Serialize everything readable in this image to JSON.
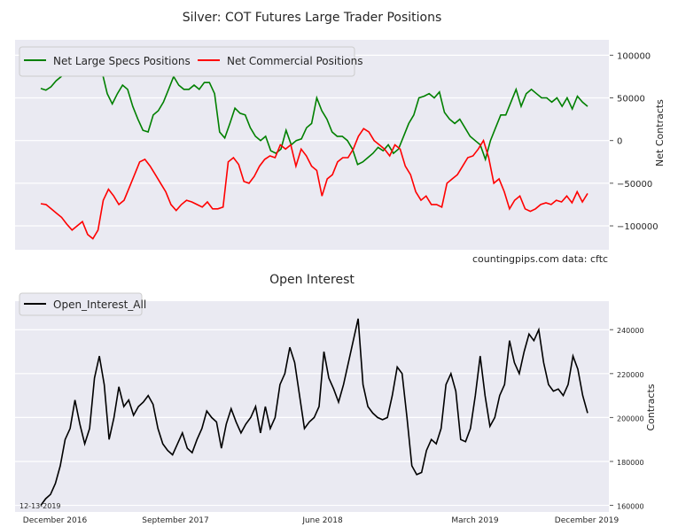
{
  "chart_data": [
    {
      "type": "line",
      "title": "Silver: COT Futures Large Trader Positions",
      "ylabel": "Net Contracts",
      "ylim": [
        -128000,
        118000
      ],
      "yticks": [
        100000,
        50000,
        0,
        -50000,
        -100000
      ],
      "ytick_labels": [
        "100000",
        "50000",
        "0",
        "−50000",
        "−100000"
      ],
      "legend_position": "top-left",
      "grid": true,
      "annotations": {
        "source": "countingpips.com",
        "data": "data: cftc"
      },
      "series": [
        {
          "name": "Net Large Specs Positions",
          "color": "#008000",
          "values": [
            61,
            59,
            63,
            70,
            75,
            83,
            90,
            96,
            85,
            80,
            95,
            105,
            80,
            55,
            43,
            55,
            65,
            60,
            40,
            25,
            12,
            10,
            30,
            35,
            45,
            60,
            75,
            65,
            60,
            60,
            65,
            60,
            68,
            68,
            55,
            10,
            3,
            20,
            38,
            32,
            30,
            15,
            5,
            0,
            5,
            -12,
            -15,
            -10,
            12,
            -5,
            0,
            2,
            15,
            20,
            50,
            35,
            25,
            10,
            5,
            5,
            0,
            -10,
            -28,
            -25,
            -20,
            -15,
            -8,
            -12,
            -5,
            -15,
            -10,
            5,
            20,
            30,
            50,
            52,
            55,
            50,
            57,
            33,
            25,
            20,
            25,
            15,
            5,
            0,
            -5,
            -22,
            0,
            15,
            30,
            30,
            45,
            60,
            40,
            55,
            60,
            55,
            50,
            50,
            45,
            50,
            40,
            50,
            37,
            52,
            45,
            40
          ]
        },
        {
          "name": "Net Commercial Positions",
          "color": "#ff0000",
          "values": [
            -74,
            -75,
            -80,
            -85,
            -90,
            -98,
            -105,
            -100,
            -95,
            -110,
            -115,
            -105,
            -70,
            -57,
            -65,
            -75,
            -70,
            -55,
            -40,
            -25,
            -22,
            -30,
            -40,
            -50,
            -60,
            -75,
            -82,
            -75,
            -70,
            -72,
            -75,
            -78,
            -72,
            -80,
            -80,
            -78,
            -25,
            -20,
            -28,
            -48,
            -50,
            -42,
            -30,
            -22,
            -18,
            -20,
            -5,
            -10,
            -5,
            -30,
            -10,
            -18,
            -30,
            -35,
            -65,
            -45,
            -40,
            -25,
            -20,
            -20,
            -10,
            5,
            14,
            10,
            0,
            -5,
            -10,
            -18,
            -5,
            -10,
            -30,
            -40,
            -60,
            -70,
            -65,
            -75,
            -75,
            -78,
            -50,
            -45,
            -40,
            -30,
            -20,
            -18,
            -10,
            0,
            -20,
            -50,
            -45,
            -60,
            -80,
            -70,
            -65,
            -80,
            -83,
            -80,
            -75,
            -73,
            -75,
            -70,
            -72,
            -65,
            -73,
            -60,
            -72,
            -62
          ]
        }
      ],
      "value_unit_multiplier": 1000
    },
    {
      "type": "line",
      "title": "Open Interest",
      "ylabel": "Contracts",
      "ylim": [
        157000,
        253000
      ],
      "yticks": [
        240000,
        220000,
        200000,
        180000,
        160000
      ],
      "ytick_labels": [
        "240000",
        "220000",
        "200000",
        "180000",
        "160000"
      ],
      "xtick_labels": [
        "December 2016",
        "September 2017",
        "June 2018",
        "March 2019",
        "December 2019"
      ],
      "legend_position": "top-left",
      "grid": true,
      "annotations": {
        "date": "12-13-2019"
      },
      "series": [
        {
          "name": "Open_Interest_All",
          "color": "#000000",
          "values": [
            160,
            163,
            165,
            170,
            178,
            190,
            195,
            208,
            197,
            188,
            195,
            218,
            228,
            215,
            190,
            200,
            214,
            205,
            208,
            201,
            205,
            207,
            210,
            206,
            195,
            188,
            185,
            183,
            188,
            193,
            186,
            184,
            190,
            195,
            203,
            200,
            198,
            186,
            197,
            204,
            198,
            193,
            197,
            200,
            205,
            193,
            205,
            195,
            200,
            215,
            220,
            232,
            225,
            210,
            195,
            198,
            200,
            205,
            230,
            218,
            213,
            207,
            215,
            225,
            235,
            245,
            215,
            205,
            202,
            200,
            199,
            200,
            210,
            223,
            220,
            200,
            178,
            174,
            175,
            185,
            190,
            188,
            195,
            215,
            220,
            212,
            190,
            189,
            195,
            210,
            228,
            210,
            196,
            200,
            210,
            215,
            235,
            225,
            220,
            230,
            238,
            235,
            240,
            225,
            215,
            212,
            213,
            210,
            215,
            228,
            222,
            210,
            202
          ]
        }
      ],
      "value_unit_multiplier": 1000
    }
  ]
}
